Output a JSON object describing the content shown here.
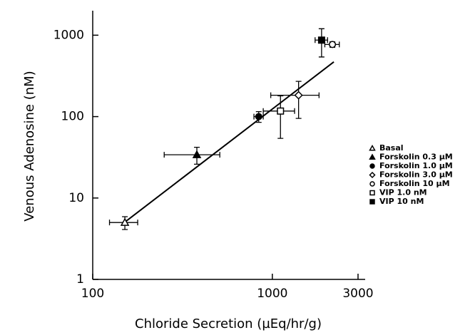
{
  "chart_data": {
    "type": "scatter",
    "x_label": "Chloride Secretion (µEq/hr/g)",
    "y_label": "Venous Adenosine (nM)",
    "x_scale": "log",
    "y_scale": "log",
    "xlim": [
      100,
      3000
    ],
    "ylim": [
      1,
      2000
    ],
    "xticks": [
      100,
      1000,
      3000
    ],
    "yticks": [
      1,
      10,
      100,
      1000
    ],
    "color": "#000000",
    "series": [
      {
        "name": "Basal",
        "marker": "triangle-open",
        "x": [
          151
        ],
        "values": [
          5
        ],
        "x_err": [
          27
        ],
        "y_err": [
          0.9
        ]
      },
      {
        "name": "Forskolin 0.3 µM",
        "marker": "triangle-filled",
        "x": [
          380
        ],
        "values": [
          34
        ],
        "x_err": [
          130
        ],
        "y_err": [
          8
        ]
      },
      {
        "name": "Forskolin 1.0 µM",
        "marker": "circle-filled",
        "x": [
          840
        ],
        "values": [
          100
        ],
        "x_err": [
          50
        ],
        "y_err": [
          15
        ]
      },
      {
        "name": "Forskolin 3.0 µM",
        "marker": "diamond-open",
        "x": [
          1400
        ],
        "values": [
          183
        ],
        "x_err": [
          420
        ],
        "y_err": [
          88
        ]
      },
      {
        "name": "Forskolin 10  µM",
        "marker": "circle-open",
        "x": [
          2160
        ],
        "values": [
          770
        ],
        "x_err": [
          200
        ],
        "y_err": [
          60
        ]
      },
      {
        "name": "VIP 1.0 nM",
        "marker": "square-open",
        "x": [
          1110
        ],
        "values": [
          117
        ],
        "x_err": [
          220
        ],
        "y_err": [
          63
        ]
      },
      {
        "name": "VIP 10  nM",
        "marker": "square-filled",
        "x": [
          1880
        ],
        "values": [
          870
        ],
        "x_err": [
          150
        ],
        "y_err": [
          330
        ]
      }
    ],
    "fit": {
      "x": [
        150,
        2200
      ],
      "y": [
        5,
        470
      ]
    }
  }
}
